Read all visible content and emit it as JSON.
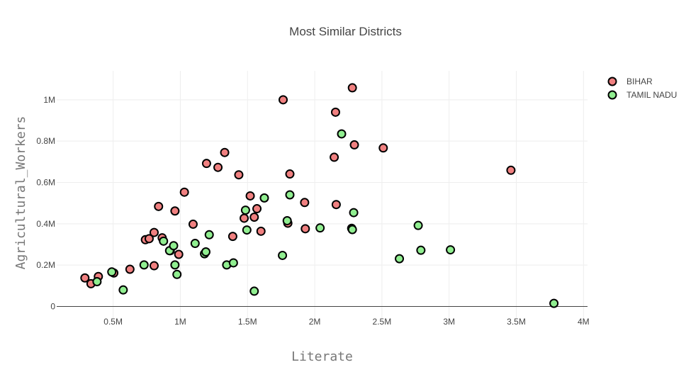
{
  "chart_data": {
    "type": "scatter",
    "title": "Most Similar Districts",
    "xlabel": "Literate",
    "ylabel": "Agricultural_Workers",
    "xlim": [
      80000,
      4030000
    ],
    "ylim": [
      -60000,
      1140000
    ],
    "x_ticks": [
      {
        "value": 500000,
        "label": "0.5M"
      },
      {
        "value": 1000000,
        "label": "1M"
      },
      {
        "value": 1500000,
        "label": "1.5M"
      },
      {
        "value": 2000000,
        "label": "2M"
      },
      {
        "value": 2500000,
        "label": "2.5M"
      },
      {
        "value": 3000000,
        "label": "3M"
      },
      {
        "value": 3500000,
        "label": "3.5M"
      },
      {
        "value": 4000000,
        "label": "4M"
      }
    ],
    "y_ticks": [
      {
        "value": 0,
        "label": "0"
      },
      {
        "value": 200000,
        "label": "0.2M"
      },
      {
        "value": 400000,
        "label": "0.4M"
      },
      {
        "value": 600000,
        "label": "0.6M"
      },
      {
        "value": 800000,
        "label": "0.8M"
      },
      {
        "value": 1000000,
        "label": "1M"
      }
    ],
    "legend_position": "top-right",
    "series": [
      {
        "name": "BIHAR",
        "color": "#f08080",
        "points": [
          [
            290000,
            138000
          ],
          [
            335000,
            110000
          ],
          [
            390000,
            145000
          ],
          [
            505000,
            162000
          ],
          [
            625000,
            180000
          ],
          [
            740000,
            323000
          ],
          [
            768000,
            328000
          ],
          [
            805000,
            358000
          ],
          [
            805000,
            197000
          ],
          [
            838000,
            484000
          ],
          [
            865000,
            332000
          ],
          [
            925000,
            270000
          ],
          [
            960000,
            462000
          ],
          [
            988000,
            252000
          ],
          [
            1030000,
            553000
          ],
          [
            1095000,
            398000
          ],
          [
            1195000,
            692000
          ],
          [
            1280000,
            673000
          ],
          [
            1330000,
            745000
          ],
          [
            1390000,
            339000
          ],
          [
            1435000,
            637000
          ],
          [
            1475000,
            427000
          ],
          [
            1520000,
            535000
          ],
          [
            1550000,
            432000
          ],
          [
            1570000,
            473000
          ],
          [
            1600000,
            364000
          ],
          [
            1765000,
            1000000
          ],
          [
            1800000,
            403000
          ],
          [
            1815000,
            641000
          ],
          [
            1925000,
            503000
          ],
          [
            1930000,
            376000
          ],
          [
            2145000,
            722000
          ],
          [
            2155000,
            940000
          ],
          [
            2160000,
            493000
          ],
          [
            2280000,
            1058000
          ],
          [
            2295000,
            782000
          ],
          [
            2510000,
            767000
          ],
          [
            3460000,
            659000
          ]
        ]
      },
      {
        "name": "TAMIL NADU",
        "color": "#90ee90",
        "points": [
          [
            380000,
            120000
          ],
          [
            490000,
            167000
          ],
          [
            575000,
            80000
          ],
          [
            730000,
            201000
          ],
          [
            875000,
            316000
          ],
          [
            920000,
            270000
          ],
          [
            950000,
            294000
          ],
          [
            960000,
            201000
          ],
          [
            975000,
            155000
          ],
          [
            1110000,
            305000
          ],
          [
            1180000,
            255000
          ],
          [
            1190000,
            264000
          ],
          [
            1215000,
            347000
          ],
          [
            1345000,
            201000
          ],
          [
            1395000,
            211000
          ],
          [
            1485000,
            466000
          ],
          [
            1495000,
            370000
          ],
          [
            1550000,
            74000
          ],
          [
            1625000,
            525000
          ],
          [
            1760000,
            247000
          ],
          [
            1795000,
            415000
          ],
          [
            1815000,
            540000
          ],
          [
            2040000,
            380000
          ],
          [
            2200000,
            835000
          ],
          [
            2275000,
            378000
          ],
          [
            2280000,
            372000
          ],
          [
            2290000,
            454000
          ],
          [
            2630000,
            231000
          ],
          [
            2770000,
            392000
          ],
          [
            2790000,
            272000
          ],
          [
            3010000,
            274000
          ],
          [
            3780000,
            15000
          ]
        ]
      }
    ]
  }
}
